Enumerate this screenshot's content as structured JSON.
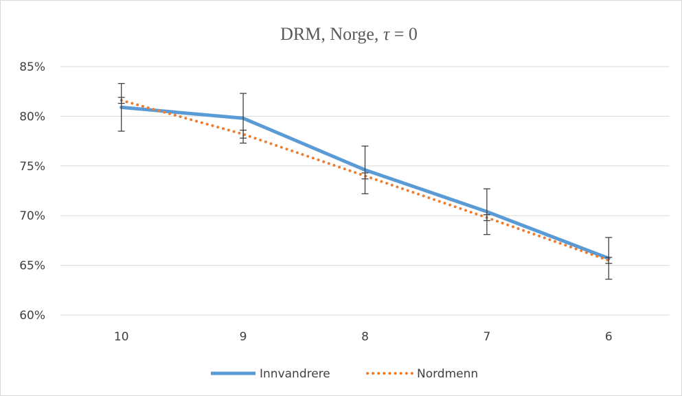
{
  "chart_data": {
    "type": "line",
    "title_main": "DRM, Norge, ",
    "title_tau": "τ",
    "title_rest": " = 0",
    "categories": [
      "10",
      "9",
      "8",
      "7",
      "6"
    ],
    "ylim": [
      60,
      85
    ],
    "yticks": [
      85,
      80,
      75,
      70,
      65,
      60
    ],
    "ytick_labels": [
      "85%",
      "80%",
      "75%",
      "70%",
      "65%",
      "60%"
    ],
    "grid": true,
    "legend_position": "bottom",
    "series": [
      {
        "name": "Innvandrere",
        "color": "#5b9bd5",
        "style": "solid",
        "values": [
          80.9,
          79.8,
          74.6,
          70.4,
          65.7
        ],
        "error": [
          2.4,
          2.5,
          2.4,
          2.3,
          2.1
        ]
      },
      {
        "name": "Nordmenn",
        "color": "#ed7d31",
        "style": "dotted",
        "values": [
          81.6,
          78.2,
          74.0,
          69.8,
          65.5
        ],
        "error": [
          0.3,
          0.4,
          0.3,
          0.3,
          0.3
        ]
      }
    ]
  }
}
